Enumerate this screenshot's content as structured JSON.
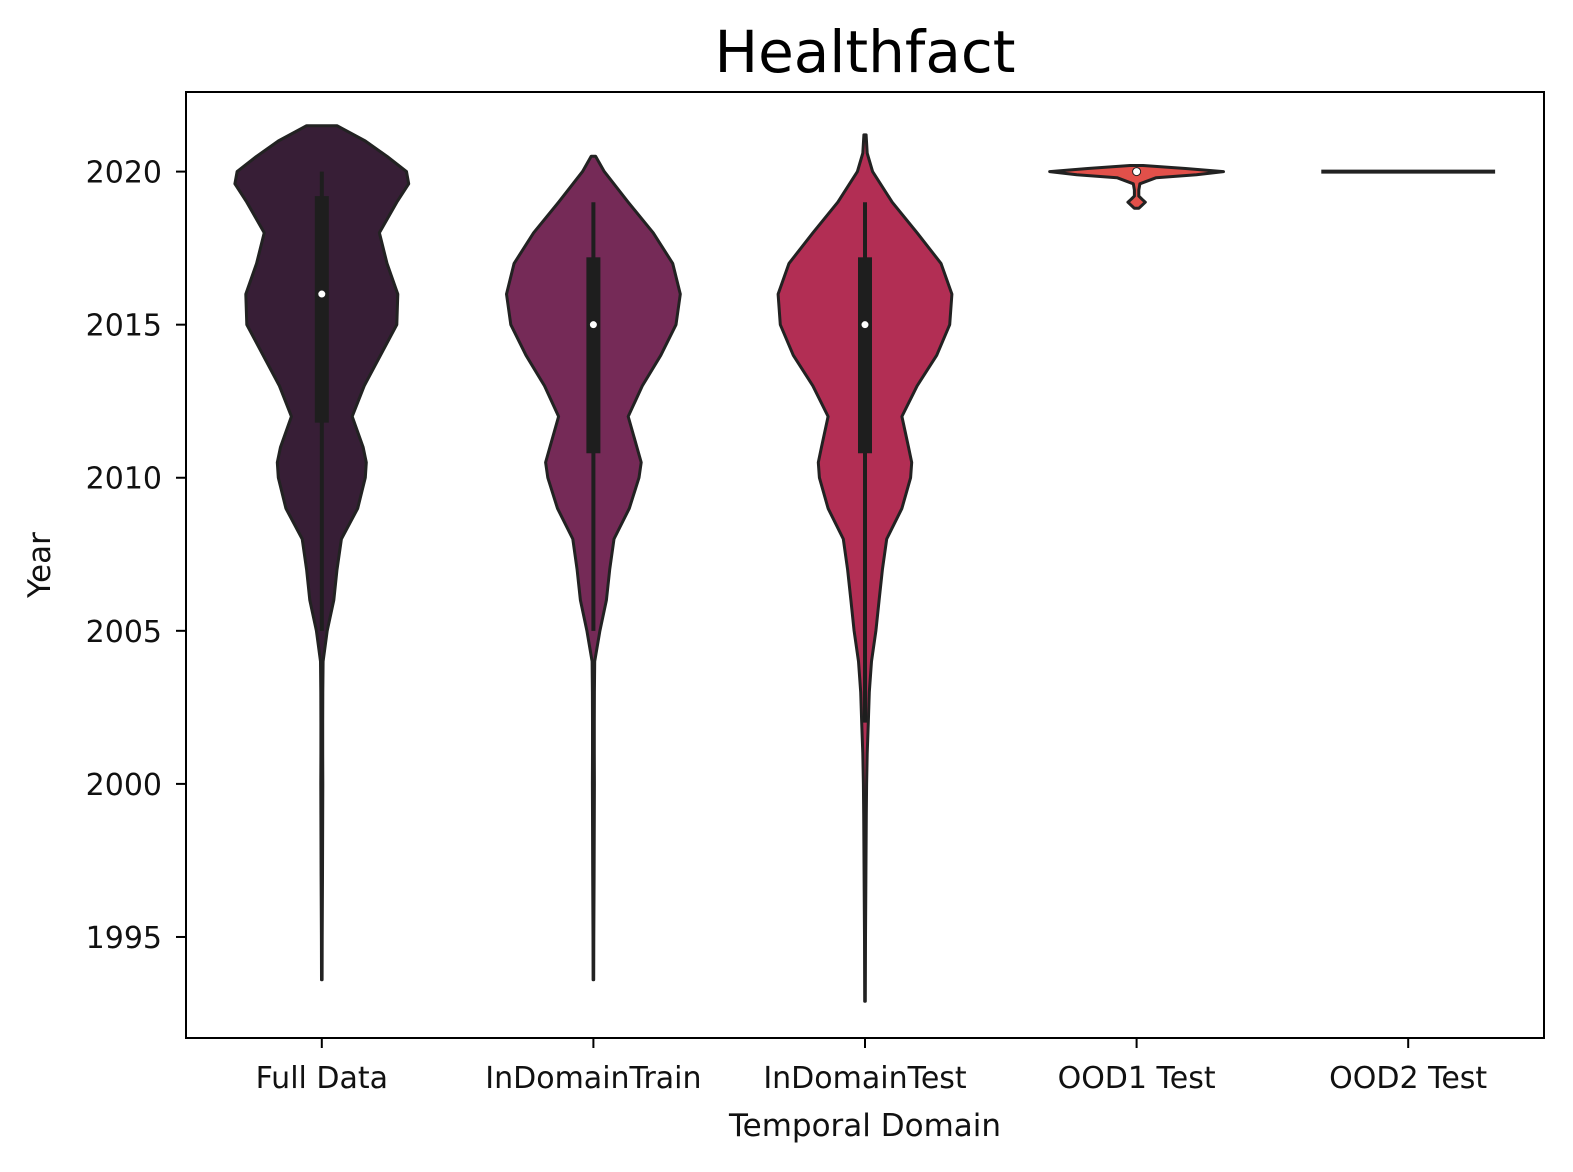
{
  "chart_data": {
    "type": "violin",
    "title": "Healthfact",
    "xlabel": "Temporal Domain",
    "ylabel": "Year",
    "ylim": [
      1991.7,
      2022.6
    ],
    "yticks": [
      1995,
      2000,
      2005,
      2010,
      2015,
      2020
    ],
    "grid": false,
    "legend": "none",
    "categories": [
      "Full Data",
      "InDomainTrain",
      "InDomainTest",
      "OOD1 Test",
      "OOD2 Test"
    ],
    "series": [
      {
        "category": "Full Data",
        "color": "#371e36",
        "range": [
          1993.6,
          2021.5
        ],
        "median": 2016,
        "q1": 2011.8,
        "q3": 2019.2,
        "whisker": [
          2005,
          2020
        ],
        "max_half_width": 0.8,
        "density": [
          [
            1993.6,
            0.003
          ],
          [
            1995,
            0.004
          ],
          [
            1997,
            0.006
          ],
          [
            1999,
            0.008
          ],
          [
            2000,
            0.009
          ],
          [
            2001,
            0.008
          ],
          [
            2002,
            0.008
          ],
          [
            2003,
            0.009
          ],
          [
            2004,
            0.012
          ],
          [
            2005,
            0.05
          ],
          [
            2006,
            0.11
          ],
          [
            2007,
            0.14
          ],
          [
            2008,
            0.18
          ],
          [
            2009,
            0.33
          ],
          [
            2010,
            0.4
          ],
          [
            2010.5,
            0.41
          ],
          [
            2011,
            0.38
          ],
          [
            2012,
            0.28
          ],
          [
            2013,
            0.39
          ],
          [
            2014,
            0.54
          ],
          [
            2015,
            0.69
          ],
          [
            2016,
            0.7
          ],
          [
            2017,
            0.6
          ],
          [
            2018,
            0.53
          ],
          [
            2019,
            0.69
          ],
          [
            2019.6,
            0.8
          ],
          [
            2020,
            0.78
          ],
          [
            2020.5,
            0.6
          ],
          [
            2021,
            0.4
          ],
          [
            2021.5,
            0.14
          ]
        ]
      },
      {
        "category": "InDomainTrain",
        "color": "#752a57",
        "range": [
          1993.6,
          2020.5
        ],
        "median": 2015,
        "q1": 2010.8,
        "q3": 2017.2,
        "whisker": [
          2005,
          2019
        ],
        "max_half_width": 0.8,
        "density": [
          [
            1993.6,
            0.003
          ],
          [
            1995,
            0.004
          ],
          [
            1997,
            0.006
          ],
          [
            1999,
            0.008
          ],
          [
            2000,
            0.009
          ],
          [
            2001,
            0.008
          ],
          [
            2002,
            0.008
          ],
          [
            2003,
            0.009
          ],
          [
            2004,
            0.012
          ],
          [
            2005,
            0.06
          ],
          [
            2006,
            0.12
          ],
          [
            2007,
            0.15
          ],
          [
            2008,
            0.19
          ],
          [
            2009,
            0.33
          ],
          [
            2010,
            0.42
          ],
          [
            2010.5,
            0.44
          ],
          [
            2011,
            0.4
          ],
          [
            2012,
            0.32
          ],
          [
            2013,
            0.45
          ],
          [
            2014,
            0.62
          ],
          [
            2015,
            0.76
          ],
          [
            2016,
            0.8
          ],
          [
            2017,
            0.73
          ],
          [
            2018,
            0.55
          ],
          [
            2019,
            0.32
          ],
          [
            2020,
            0.1
          ],
          [
            2020.5,
            0.02
          ]
        ]
      },
      {
        "category": "InDomainTest",
        "color": "#b22e54",
        "range": [
          1992.9,
          2021.2
        ],
        "median": 2015,
        "q1": 2010.8,
        "q3": 2017.2,
        "whisker": [
          2002,
          2019
        ],
        "max_half_width": 0.8,
        "density": [
          [
            1992.9,
            0.003
          ],
          [
            1995,
            0.005
          ],
          [
            1997,
            0.008
          ],
          [
            1999,
            0.012
          ],
          [
            2000,
            0.015
          ],
          [
            2001,
            0.02
          ],
          [
            2002,
            0.03
          ],
          [
            2003,
            0.04
          ],
          [
            2004,
            0.06
          ],
          [
            2005,
            0.1
          ],
          [
            2006,
            0.13
          ],
          [
            2007,
            0.16
          ],
          [
            2008,
            0.2
          ],
          [
            2009,
            0.34
          ],
          [
            2010,
            0.42
          ],
          [
            2010.5,
            0.43
          ],
          [
            2011,
            0.4
          ],
          [
            2012,
            0.34
          ],
          [
            2013,
            0.48
          ],
          [
            2014,
            0.66
          ],
          [
            2015,
            0.78
          ],
          [
            2016,
            0.8
          ],
          [
            2017,
            0.7
          ],
          [
            2018,
            0.48
          ],
          [
            2019,
            0.25
          ],
          [
            2020,
            0.07
          ],
          [
            2020.6,
            0.02
          ],
          [
            2021.2,
            0.01
          ]
        ]
      },
      {
        "category": "OOD1 Test",
        "color": "#e2504a",
        "range": [
          2018.8,
          2020.2
        ],
        "median": 2020,
        "q1": 2020,
        "q3": 2020,
        "whisker": [
          2020,
          2020
        ],
        "max_half_width": 0.8,
        "density": [
          [
            2018.8,
            0.02
          ],
          [
            2018.9,
            0.05
          ],
          [
            2019,
            0.08
          ],
          [
            2019.1,
            0.05
          ],
          [
            2019.2,
            0.02
          ],
          [
            2019.4,
            0.02
          ],
          [
            2019.6,
            0.03
          ],
          [
            2019.8,
            0.18
          ],
          [
            2019.9,
            0.55
          ],
          [
            2020,
            0.8
          ],
          [
            2020.1,
            0.45
          ],
          [
            2020.2,
            0.06
          ]
        ]
      },
      {
        "category": "OOD2 Test",
        "color": "#f08a64",
        "range": [
          2020,
          2020
        ],
        "median": 2020,
        "q1": 2020,
        "q3": 2020,
        "whisker": [
          2020,
          2020
        ],
        "max_half_width": 0.8,
        "density": [
          [
            2020,
            0.8
          ]
        ]
      }
    ]
  }
}
